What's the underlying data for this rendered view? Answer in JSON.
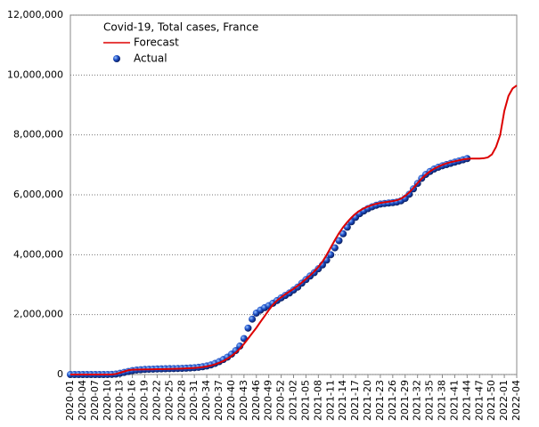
{
  "chart_data": {
    "type": "line",
    "title": "Covid-19, Total cases, France",
    "categories": [
      "2020-01",
      null,
      null,
      "2020-04",
      null,
      null,
      "2020-07",
      null,
      null,
      "2020-10",
      null,
      null,
      "2020-13",
      null,
      null,
      "2020-16",
      null,
      null,
      "2020-19",
      null,
      null,
      "2020-22",
      null,
      null,
      "2020-25",
      null,
      null,
      "2020-28",
      null,
      null,
      "2020-31",
      null,
      null,
      "2020-34",
      null,
      null,
      "2020-37",
      null,
      null,
      "2020-40",
      null,
      null,
      "2020-43",
      null,
      null,
      "2020-46",
      null,
      null,
      "2020-49",
      null,
      null,
      "2020-52",
      null,
      null,
      "2021-02",
      null,
      null,
      "2021-05",
      null,
      null,
      "2021-08",
      null,
      null,
      "2021-11",
      null,
      null,
      "2021-14",
      null,
      null,
      "2021-17",
      null,
      null,
      "2021-20",
      null,
      null,
      "2021-23",
      null,
      null,
      "2021-26",
      null,
      null,
      "2021-29",
      null,
      null,
      "2021-32",
      null,
      null,
      "2021-35",
      null,
      null,
      "2021-38",
      null,
      null,
      "2021-41",
      null,
      null,
      "2021-44",
      null,
      null,
      "2021-47",
      null,
      null,
      "2021-50",
      null,
      null,
      "2022-01",
      null,
      null,
      "2022-04"
    ],
    "series": [
      {
        "name": "Forecast",
        "color": "#dd0000",
        "style": "line",
        "values": [
          0,
          0,
          0,
          0,
          0,
          0,
          0,
          0,
          0,
          0,
          0,
          20000,
          60000,
          100000,
          140000,
          160000,
          165000,
          168000,
          170000,
          172000,
          175000,
          178000,
          180000,
          183000,
          186000,
          190000,
          194000,
          198000,
          203000,
          210000,
          220000,
          232000,
          248000,
          270000,
          300000,
          340000,
          390000,
          450000,
          530000,
          620000,
          730000,
          860000,
          1020000,
          1200000,
          1380000,
          1560000,
          1760000,
          1950000,
          2150000,
          2330000,
          2470000,
          2580000,
          2680000,
          2770000,
          2860000,
          2960000,
          3070000,
          3190000,
          3310000,
          3440000,
          3590000,
          3770000,
          3990000,
          4240000,
          4490000,
          4720000,
          4920000,
          5090000,
          5240000,
          5370000,
          5470000,
          5550000,
          5610000,
          5660000,
          5700000,
          5730000,
          5750000,
          5770000,
          5790000,
          5820000,
          5870000,
          5960000,
          6080000,
          6230000,
          6390000,
          6540000,
          6670000,
          6780000,
          6870000,
          6940000,
          7000000,
          7050000,
          7090000,
          7120000,
          7150000,
          7180000,
          7200000,
          7210000,
          7210000,
          7210000,
          7220000,
          7250000,
          7350000,
          7600000,
          8000000,
          8800000,
          9300000,
          9550000,
          9650000
        ]
      },
      {
        "name": "Actual",
        "color": "#1e50c8",
        "style": "dots",
        "values": [
          0,
          0,
          0,
          0,
          0,
          0,
          0,
          0,
          100,
          1100,
          4500,
          14000,
          40000,
          70000,
          100000,
          130000,
          150000,
          160000,
          170000,
          175000,
          180000,
          185000,
          188000,
          192000,
          195000,
          198000,
          201000,
          205000,
          210000,
          218000,
          228000,
          240000,
          260000,
          285000,
          320000,
          370000,
          430000,
          500000,
          580000,
          680000,
          800000,
          950000,
          1200000,
          1550000,
          1850000,
          2050000,
          2150000,
          2230000,
          2300000,
          2380000,
          2470000,
          2560000,
          2640000,
          2720000,
          2820000,
          2920000,
          3050000,
          3170000,
          3290000,
          3400000,
          3530000,
          3660000,
          3820000,
          4000000,
          4230000,
          4470000,
          4700000,
          4920000,
          5100000,
          5250000,
          5370000,
          5460000,
          5540000,
          5600000,
          5650000,
          5690000,
          5710000,
          5725000,
          5740000,
          5760000,
          5800000,
          5880000,
          6020000,
          6200000,
          6380000,
          6550000,
          6680000,
          6780000,
          6860000,
          6920000,
          6970000,
          7010000,
          7050000,
          7090000,
          7130000,
          7170000,
          7210000,
          null,
          null,
          null,
          null,
          null,
          null,
          null,
          null,
          null,
          null,
          null,
          null
        ]
      }
    ],
    "ylim": [
      0,
      12000000
    ],
    "yticks": [
      0,
      {
        "value": 2000000,
        "label": "2,000,000"
      },
      {
        "value": 4000000,
        "label": "4,000,000"
      },
      {
        "value": 6000000,
        "label": "6,000,000"
      },
      {
        "value": 8000000,
        "label": "8,000,000"
      },
      {
        "value": 10000000,
        "label": "10,000,000"
      },
      {
        "value": 12000000,
        "label": "12,000,000"
      }
    ],
    "grid": true
  }
}
